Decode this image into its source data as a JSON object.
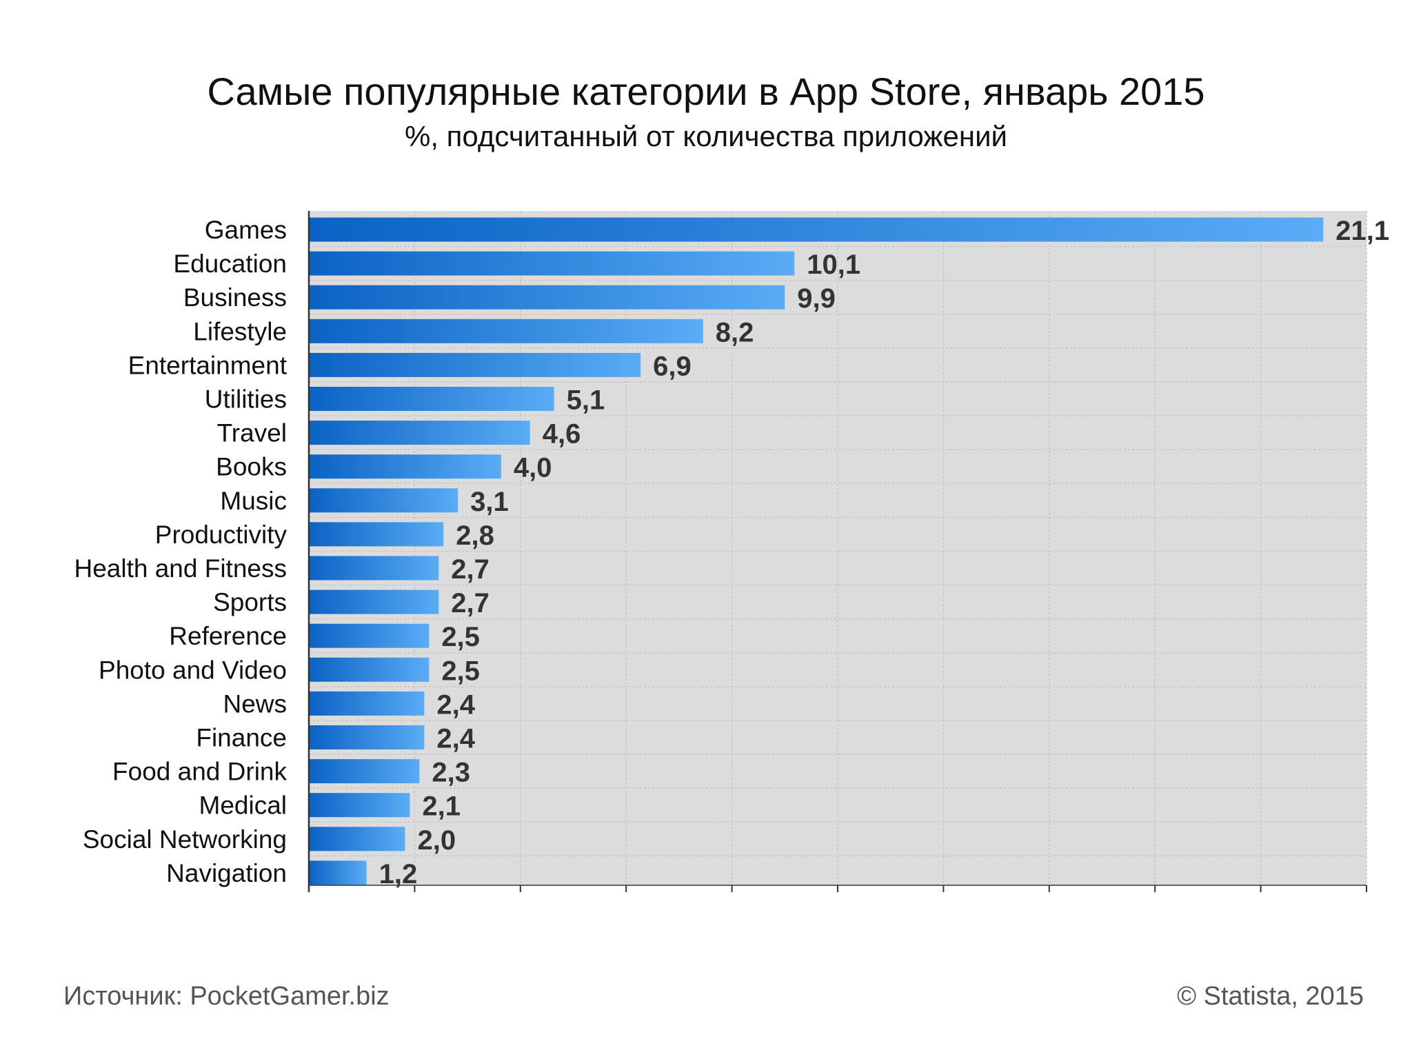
{
  "chart_data": {
    "type": "bar",
    "orientation": "horizontal",
    "title": "Самые популярные категории в App Store, январь 2015",
    "subtitle": "%, подсчитанный от количества приложений",
    "categories": [
      "Games",
      "Education",
      "Business",
      "Lifestyle",
      "Entertainment",
      "Utilities",
      "Travel",
      "Books",
      "Music",
      "Productivity",
      "Health and Fitness",
      "Sports",
      "Reference",
      "Photo and Video",
      "News",
      "Finance",
      "Food and Drink",
      "Medical",
      "Social Networking",
      "Navigation"
    ],
    "values": [
      21.1,
      10.1,
      9.9,
      8.2,
      6.9,
      5.1,
      4.6,
      4.0,
      3.1,
      2.8,
      2.7,
      2.7,
      2.5,
      2.5,
      2.4,
      2.4,
      2.3,
      2.1,
      2.0,
      1.2
    ],
    "value_labels": [
      "21,1",
      "10,1",
      "9,9",
      "8,2",
      "6,9",
      "5,1",
      "4,6",
      "4,0",
      "3,1",
      "2,8",
      "2,7",
      "2,7",
      "2,5",
      "2,5",
      "2,4",
      "2,4",
      "2,3",
      "2,1",
      "2,0",
      "1,2"
    ],
    "xlim": [
      0,
      22
    ],
    "x_tick_step": 2.2,
    "xlabel": "",
    "ylabel": "",
    "grid": true,
    "legend": "none"
  },
  "footer": {
    "source": "Источник: PocketGamer.biz",
    "copyright": "© Statista, 2015"
  },
  "colors": {
    "bar_dark": "#0a62c4",
    "bar_light": "#5aacf5",
    "plot_background": "#dcdcdc",
    "grid_line": "#c4c4c4",
    "axis_line": "#333333",
    "value_text": "#333333"
  }
}
